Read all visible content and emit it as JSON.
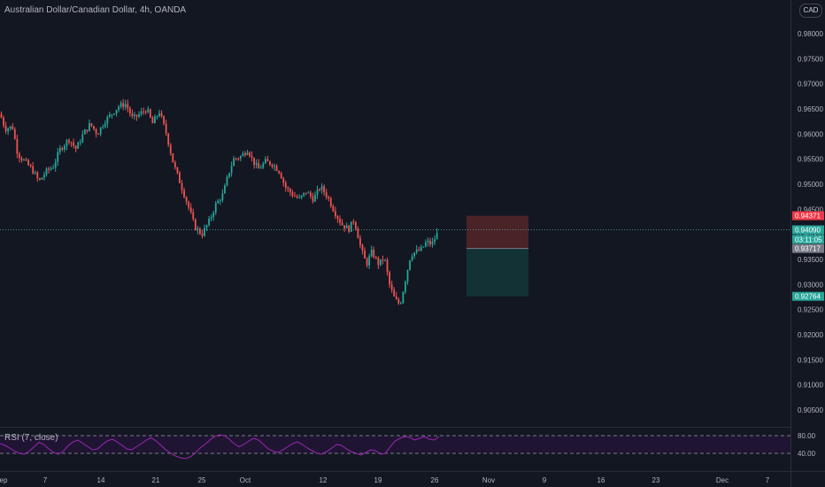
{
  "title": "Australian Dollar/Canadian Dollar, 4h, OANDA",
  "currency_button": "CAD",
  "rsi_label": "RSI (7, close)",
  "price_tags": [
    {
      "value": "0.94371",
      "color": "#f23645",
      "price": 0.94371
    },
    {
      "value": "0.94090",
      "color": "#26a69a",
      "price": 0.9409
    },
    {
      "value": "03:11:05",
      "color": "#26a69a",
      "price": 0.939
    },
    {
      "value": "0.93717",
      "color": "#787b86",
      "price": 0.93717
    },
    {
      "value": "0.92764",
      "color": "#26a69a",
      "price": 0.92764
    }
  ],
  "colors": {
    "background": "#131722",
    "up": "#26a69a",
    "down": "#ef5350",
    "rsi": "#9c27b0",
    "stop_zone": "#4a2327",
    "target_zone": "#123236",
    "grid": "#1e222d"
  },
  "chart_data": {
    "type": "candlestick",
    "title": "Australian Dollar/Canadian Dollar, 4h, OANDA",
    "y_ticks": [
      "0.98000",
      "0.97500",
      "0.97000",
      "0.96500",
      "0.96000",
      "0.95500",
      "0.95000",
      "0.94500",
      "0.94000",
      "0.93500",
      "0.93000",
      "0.92500",
      "0.92000",
      "0.91500",
      "0.91000",
      "0.90500"
    ],
    "ylim": [
      0.901,
      0.988
    ],
    "x_ticks": [
      "ep",
      "7",
      "14",
      "21",
      "25",
      "Oct",
      "12",
      "19",
      "26",
      "Nov",
      "9",
      "16",
      "23",
      "Dec",
      "7"
    ],
    "last_price": 0.9409,
    "position": {
      "entry": 0.93717,
      "stop": 0.94371,
      "target": 0.92764
    },
    "price_path": [
      [
        0,
        0.964
      ],
      [
        6,
        0.961
      ],
      [
        14,
        0.9615
      ],
      [
        20,
        0.956
      ],
      [
        28,
        0.9545
      ],
      [
        36,
        0.953
      ],
      [
        44,
        0.9505
      ],
      [
        52,
        0.9525
      ],
      [
        60,
        0.9535
      ],
      [
        68,
        0.957
      ],
      [
        78,
        0.959
      ],
      [
        86,
        0.957
      ],
      [
        94,
        0.96
      ],
      [
        102,
        0.962
      ],
      [
        110,
        0.96
      ],
      [
        118,
        0.9625
      ],
      [
        126,
        0.964
      ],
      [
        134,
        0.9655
      ],
      [
        142,
        0.966
      ],
      [
        150,
        0.963
      ],
      [
        158,
        0.964
      ],
      [
        166,
        0.965
      ],
      [
        172,
        0.962
      ],
      [
        180,
        0.9645
      ],
      [
        188,
        0.96
      ],
      [
        196,
        0.954
      ],
      [
        204,
        0.95
      ],
      [
        212,
        0.946
      ],
      [
        220,
        0.9415
      ],
      [
        228,
        0.94
      ],
      [
        236,
        0.9425
      ],
      [
        244,
        0.946
      ],
      [
        252,
        0.948
      ],
      [
        258,
        0.952
      ],
      [
        264,
        0.955
      ],
      [
        272,
        0.9555
      ],
      [
        280,
        0.957
      ],
      [
        286,
        0.9545
      ],
      [
        292,
        0.953
      ],
      [
        300,
        0.9545
      ],
      [
        308,
        0.954
      ],
      [
        316,
        0.9525
      ],
      [
        322,
        0.9495
      ],
      [
        330,
        0.948
      ],
      [
        338,
        0.947
      ],
      [
        346,
        0.9485
      ],
      [
        354,
        0.947
      ],
      [
        362,
        0.9495
      ],
      [
        370,
        0.9475
      ],
      [
        378,
        0.9445
      ],
      [
        386,
        0.942
      ],
      [
        394,
        0.941
      ],
      [
        400,
        0.943
      ],
      [
        408,
        0.937
      ],
      [
        414,
        0.934
      ],
      [
        420,
        0.9365
      ],
      [
        428,
        0.934
      ],
      [
        434,
        0.9355
      ],
      [
        440,
        0.93
      ],
      [
        446,
        0.927
      ],
      [
        452,
        0.926
      ],
      [
        458,
        0.931
      ],
      [
        464,
        0.936
      ],
      [
        470,
        0.9365
      ],
      [
        476,
        0.937
      ],
      [
        482,
        0.9385
      ],
      [
        488,
        0.938
      ],
      [
        496,
        0.9409
      ]
    ],
    "rsi": {
      "name": "RSI (7, close)",
      "levels": [
        80,
        40
      ],
      "tick_labels": [
        "80.00",
        "40.00"
      ],
      "ylim": [
        20,
        90
      ],
      "values": [
        62,
        58,
        52,
        45,
        40,
        38,
        45,
        55,
        65,
        60,
        50,
        42,
        38,
        45,
        58,
        66,
        70,
        62,
        55,
        48,
        50,
        60,
        68,
        72,
        66,
        58,
        50,
        48,
        55,
        62,
        70,
        75,
        68,
        58,
        48,
        40,
        34,
        30,
        28,
        32,
        40,
        52,
        60,
        70,
        78,
        82,
        80,
        72,
        62,
        55,
        60,
        68,
        74,
        70,
        60,
        50,
        45,
        42,
        48,
        55,
        62,
        66,
        60,
        52,
        46,
        40,
        38,
        44,
        52,
        60,
        58,
        50,
        44,
        40,
        36,
        42,
        48,
        46,
        38,
        40,
        55,
        68,
        74,
        78,
        76,
        70,
        74,
        78,
        72,
        70,
        78
      ]
    }
  }
}
